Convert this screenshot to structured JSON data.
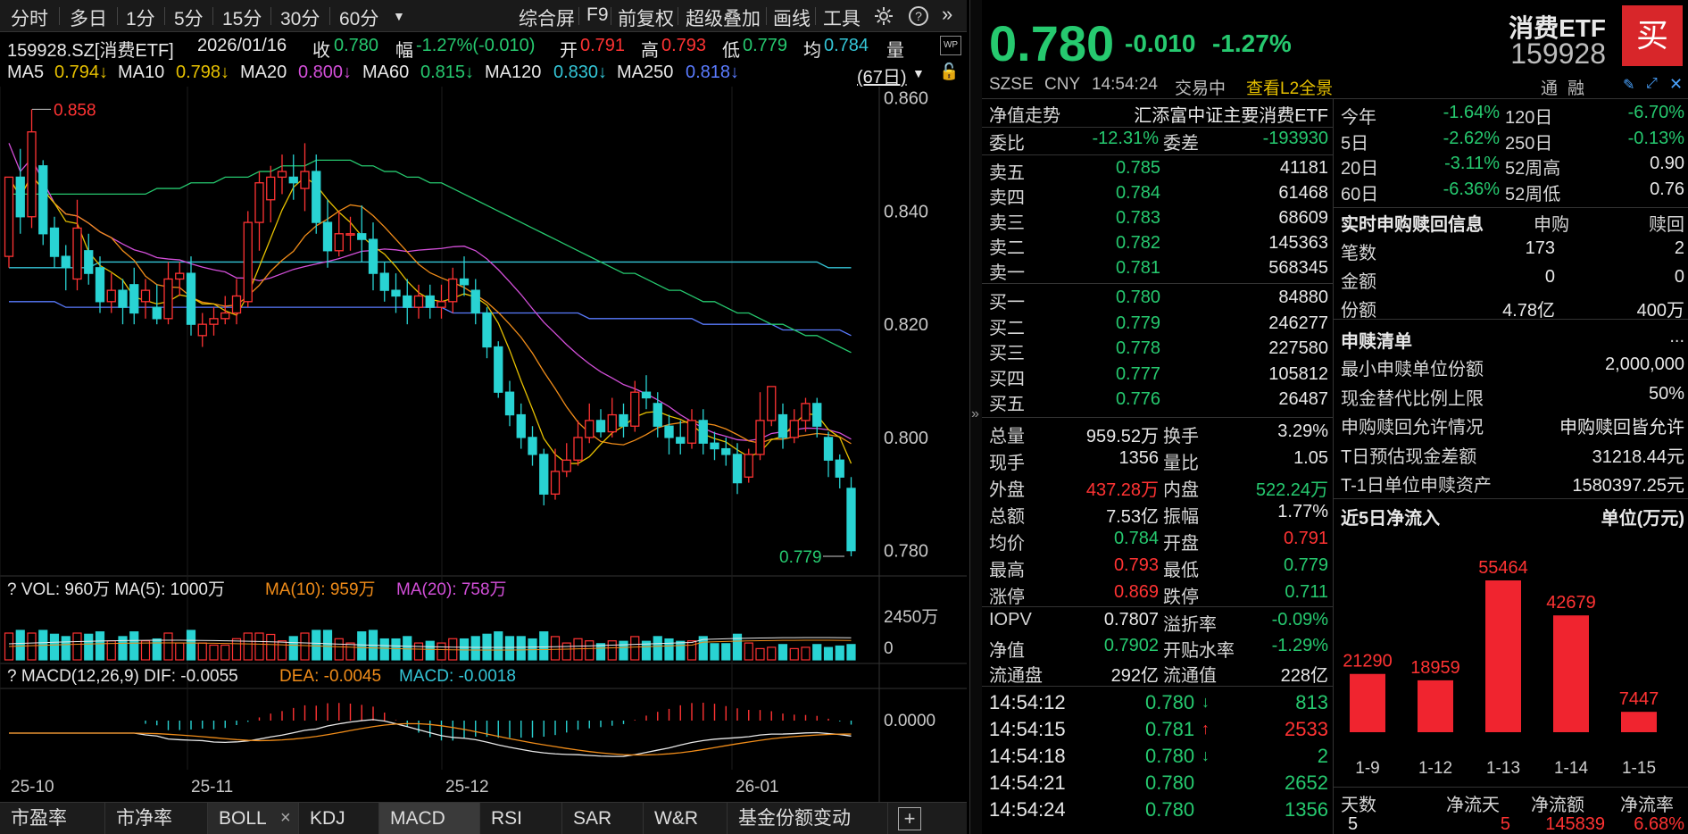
{
  "toolbar": {
    "periods": [
      "分时",
      "多日",
      "1分",
      "5分",
      "15分",
      "30分",
      "60分"
    ],
    "right_items": [
      "综合屏",
      "F9",
      "前复权",
      "超级叠加",
      "画线",
      "工具"
    ]
  },
  "info": {
    "code_name": "159928.SZ[消费ETF]",
    "date": "2026/01/16",
    "close_label": "收",
    "close": "0.780",
    "range_label": "幅",
    "range": "-1.27%(-0.010)",
    "open_label": "开",
    "open": "0.791",
    "high_label": "高",
    "high": "0.793",
    "low_label": "低",
    "low": "0.779",
    "avg_label": "均",
    "avg": "0.784",
    "vol_label": "量"
  },
  "ma": {
    "ma5": "MA5",
    "ma5v": "0.794↓",
    "ma10": "MA10",
    "ma10v": "0.798↓",
    "ma20": "MA20",
    "ma20v": "0.800↓",
    "ma60": "MA60",
    "ma60v": "0.815↓",
    "ma120": "MA120",
    "ma120v": "0.830↓",
    "ma250": "MA250",
    "ma250v": "0.818↓",
    "days": "(67日)"
  },
  "chart_data": {
    "type": "candlestick",
    "ylim": [
      0.776,
      0.862
    ],
    "yticks": [
      "0.860",
      "0.840",
      "0.820",
      "0.800",
      "0.780"
    ],
    "max_label": "0.858",
    "min_label": "0.779",
    "xticks": [
      "25-10",
      "25-11",
      "25-12",
      "26-01"
    ],
    "candles": [
      [
        0.832,
        0.846,
        0.846,
        0.83
      ],
      [
        0.846,
        0.839,
        0.851,
        0.836
      ],
      [
        0.839,
        0.854,
        0.858,
        0.837
      ],
      [
        0.848,
        0.836,
        0.849,
        0.834
      ],
      [
        0.837,
        0.832,
        0.839,
        0.83
      ],
      [
        0.832,
        0.83,
        0.834,
        0.826
      ],
      [
        0.828,
        0.837,
        0.842,
        0.826
      ],
      [
        0.833,
        0.829,
        0.836,
        0.827
      ],
      [
        0.83,
        0.824,
        0.832,
        0.822
      ],
      [
        0.824,
        0.826,
        0.829,
        0.822
      ],
      [
        0.826,
        0.823,
        0.828,
        0.82
      ],
      [
        0.827,
        0.822,
        0.83,
        0.82
      ],
      [
        0.824,
        0.826,
        0.828,
        0.821
      ],
      [
        0.823,
        0.821,
        0.827,
        0.82
      ],
      [
        0.821,
        0.828,
        0.831,
        0.82
      ],
      [
        0.828,
        0.829,
        0.831,
        0.825
      ],
      [
        0.829,
        0.82,
        0.832,
        0.818
      ],
      [
        0.818,
        0.82,
        0.822,
        0.816
      ],
      [
        0.82,
        0.821,
        0.823,
        0.818
      ],
      [
        0.821,
        0.822,
        0.825,
        0.82
      ],
      [
        0.822,
        0.825,
        0.828,
        0.82
      ],
      [
        0.824,
        0.838,
        0.84,
        0.823
      ],
      [
        0.838,
        0.845,
        0.847,
        0.833
      ],
      [
        0.842,
        0.846,
        0.848,
        0.838
      ],
      [
        0.846,
        0.847,
        0.85,
        0.843
      ],
      [
        0.846,
        0.845,
        0.85,
        0.842
      ],
      [
        0.844,
        0.847,
        0.852,
        0.84
      ],
      [
        0.847,
        0.838,
        0.85,
        0.836
      ],
      [
        0.838,
        0.833,
        0.842,
        0.83
      ],
      [
        0.833,
        0.836,
        0.84,
        0.832
      ],
      [
        0.836,
        0.836,
        0.839,
        0.833
      ],
      [
        0.836,
        0.835,
        0.841,
        0.831
      ],
      [
        0.835,
        0.829,
        0.838,
        0.826
      ],
      [
        0.829,
        0.826,
        0.831,
        0.824
      ],
      [
        0.826,
        0.825,
        0.829,
        0.822
      ],
      [
        0.825,
        0.823,
        0.828,
        0.82
      ],
      [
        0.823,
        0.825,
        0.827,
        0.821
      ],
      [
        0.825,
        0.823,
        0.827,
        0.821
      ],
      [
        0.823,
        0.824,
        0.827,
        0.821
      ],
      [
        0.824,
        0.828,
        0.83,
        0.822
      ],
      [
        0.828,
        0.827,
        0.832,
        0.825
      ],
      [
        0.826,
        0.822,
        0.828,
        0.82
      ],
      [
        0.822,
        0.816,
        0.823,
        0.814
      ],
      [
        0.816,
        0.808,
        0.817,
        0.807
      ],
      [
        0.808,
        0.804,
        0.81,
        0.802
      ],
      [
        0.804,
        0.8,
        0.806,
        0.798
      ],
      [
        0.8,
        0.797,
        0.802,
        0.795
      ],
      [
        0.797,
        0.79,
        0.798,
        0.788
      ],
      [
        0.79,
        0.794,
        0.798,
        0.789
      ],
      [
        0.794,
        0.796,
        0.799,
        0.793
      ],
      [
        0.796,
        0.8,
        0.803,
        0.795
      ],
      [
        0.8,
        0.803,
        0.806,
        0.799
      ],
      [
        0.803,
        0.801,
        0.805,
        0.8
      ],
      [
        0.801,
        0.804,
        0.807,
        0.8
      ],
      [
        0.804,
        0.802,
        0.806,
        0.8
      ],
      [
        0.802,
        0.808,
        0.81,
        0.801
      ],
      [
        0.808,
        0.807,
        0.811,
        0.805
      ],
      [
        0.806,
        0.802,
        0.808,
        0.8
      ],
      [
        0.802,
        0.8,
        0.804,
        0.797
      ],
      [
        0.8,
        0.799,
        0.803,
        0.797
      ],
      [
        0.799,
        0.803,
        0.805,
        0.798
      ],
      [
        0.803,
        0.799,
        0.805,
        0.797
      ],
      [
        0.799,
        0.798,
        0.801,
        0.796
      ],
      [
        0.798,
        0.797,
        0.8,
        0.795
      ],
      [
        0.797,
        0.792,
        0.799,
        0.79
      ],
      [
        0.793,
        0.797,
        0.798,
        0.792
      ],
      [
        0.797,
        0.803,
        0.808,
        0.796
      ],
      [
        0.803,
        0.809,
        0.809,
        0.802
      ],
      [
        0.804,
        0.8,
        0.806,
        0.798
      ],
      [
        0.8,
        0.803,
        0.805,
        0.799
      ],
      [
        0.803,
        0.806,
        0.807,
        0.801
      ],
      [
        0.806,
        0.802,
        0.807,
        0.8
      ],
      [
        0.8,
        0.796,
        0.801,
        0.793
      ],
      [
        0.796,
        0.793,
        0.797,
        0.791
      ],
      [
        0.791,
        0.78,
        0.793,
        0.779
      ]
    ],
    "ma_colors": {
      "ma5": "#e6c000",
      "ma10": "#f08c19",
      "ma20": "#d34fd9",
      "ma60": "#26c96f",
      "ma120": "#34c5d6",
      "ma250": "#5a7bff"
    },
    "ma120_line": [
      0.83,
      0.83,
      0.83,
      0.83,
      0.83,
      0.83,
      0.83,
      0.83,
      0.831,
      0.831,
      0.831,
      0.831,
      0.831,
      0.831,
      0.831,
      0.831,
      0.831,
      0.831,
      0.831,
      0.831,
      0.831,
      0.831,
      0.831,
      0.831,
      0.831,
      0.831,
      0.831,
      0.831,
      0.831,
      0.831,
      0.831,
      0.831,
      0.831,
      0.831,
      0.831,
      0.831,
      0.831,
      0.831,
      0.831,
      0.831,
      0.831,
      0.831,
      0.831,
      0.831,
      0.831,
      0.831,
      0.831,
      0.831,
      0.831,
      0.831,
      0.831,
      0.831,
      0.831,
      0.831,
      0.831,
      0.831,
      0.831,
      0.831,
      0.831,
      0.831,
      0.831,
      0.831,
      0.831,
      0.831,
      0.831,
      0.831,
      0.831,
      0.831,
      0.831,
      0.831,
      0.831,
      0.831,
      0.83,
      0.83,
      0.83
    ],
    "ma250_line": [
      0.824,
      0.824,
      0.824,
      0.824,
      0.824,
      0.823,
      0.823,
      0.823,
      0.823,
      0.823,
      0.823,
      0.823,
      0.823,
      0.823,
      0.823,
      0.823,
      0.823,
      0.823,
      0.823,
      0.823,
      0.823,
      0.823,
      0.823,
      0.823,
      0.823,
      0.823,
      0.823,
      0.823,
      0.823,
      0.823,
      0.823,
      0.823,
      0.823,
      0.823,
      0.823,
      0.823,
      0.823,
      0.823,
      0.823,
      0.822,
      0.822,
      0.822,
      0.822,
      0.822,
      0.822,
      0.822,
      0.822,
      0.822,
      0.822,
      0.822,
      0.822,
      0.821,
      0.821,
      0.821,
      0.821,
      0.821,
      0.821,
      0.821,
      0.821,
      0.821,
      0.821,
      0.82,
      0.82,
      0.82,
      0.82,
      0.82,
      0.82,
      0.82,
      0.819,
      0.819,
      0.819,
      0.819,
      0.819,
      0.819,
      0.818
    ],
    "ma60_line": [
      0.843,
      0.843,
      0.843,
      0.843,
      0.843,
      0.843,
      0.843,
      0.843,
      0.843,
      0.843,
      0.843,
      0.843,
      0.843,
      0.844,
      0.844,
      0.844,
      0.845,
      0.845,
      0.845,
      0.846,
      0.846,
      0.846,
      0.847,
      0.847,
      0.848,
      0.848,
      0.848,
      0.849,
      0.849,
      0.849,
      0.849,
      0.848,
      0.848,
      0.847,
      0.847,
      0.846,
      0.846,
      0.845,
      0.845,
      0.844,
      0.843,
      0.842,
      0.841,
      0.84,
      0.839,
      0.838,
      0.837,
      0.836,
      0.835,
      0.834,
      0.833,
      0.832,
      0.831,
      0.83,
      0.829,
      0.829,
      0.828,
      0.827,
      0.826,
      0.826,
      0.825,
      0.824,
      0.824,
      0.823,
      0.822,
      0.822,
      0.821,
      0.82,
      0.82,
      0.819,
      0.818,
      0.818,
      0.817,
      0.816,
      0.815
    ],
    "volume": {
      "label": "VOL: 960万 MA(5): 1000万",
      "ma10": "MA(10): 959万",
      "ma20": "MA(20): 758万",
      "ytick_top": "2450万",
      "ytick_zero": "0",
      "max": 2450
    },
    "macd": {
      "label": "MACD(12,26,9) DIF: -0.0055",
      "dea": "DEA: -0.0045",
      "macd": "MACD: -0.0018",
      "ytick": "0.0000"
    }
  },
  "bottom_tabs": [
    "市盈率",
    "市净率",
    "BOLL",
    "KDJ",
    "MACD",
    "RSI",
    "SAR",
    "W&R",
    "基金份额变动"
  ],
  "quote": {
    "price": "0.780",
    "change": "-0.010",
    "change_pct": "-1.27%",
    "name": "消费ETF",
    "code": "159928",
    "exchange": "SZSE",
    "currency": "CNY",
    "time": "14:54:24",
    "status": "交易中",
    "l2": "查看L2全景",
    "tong": "通",
    "rong": "融",
    "buy": "买",
    "nav_trend": "净值走势",
    "fund_name": "汇添富中证主要消费ETF",
    "weibi_label": "委比",
    "weibi": "-12.31%",
    "weicha_label": "委差",
    "weicha": "-193930",
    "asks": [
      {
        "label": "卖五",
        "price": "0.785",
        "vol": "41181"
      },
      {
        "label": "卖四",
        "price": "0.784",
        "vol": "61468"
      },
      {
        "label": "卖三",
        "price": "0.783",
        "vol": "68609"
      },
      {
        "label": "卖二",
        "price": "0.782",
        "vol": "145363"
      },
      {
        "label": "卖一",
        "price": "0.781",
        "vol": "568345"
      }
    ],
    "bids": [
      {
        "label": "买一",
        "price": "0.780",
        "vol": "84880"
      },
      {
        "label": "买二",
        "price": "0.779",
        "vol": "246277"
      },
      {
        "label": "买三",
        "price": "0.778",
        "vol": "227580"
      },
      {
        "label": "买四",
        "price": "0.777",
        "vol": "105812"
      },
      {
        "label": "买五",
        "price": "0.776",
        "vol": "26487"
      }
    ],
    "stats": [
      [
        {
          "l": "总量",
          "v": "959.52万",
          "c": "white"
        },
        {
          "l": "换手",
          "v": "3.29%",
          "c": "white"
        }
      ],
      [
        {
          "l": "现手",
          "v": "1356",
          "c": "white"
        },
        {
          "l": "量比",
          "v": "1.05",
          "c": "white"
        }
      ],
      [
        {
          "l": "外盘",
          "v": "437.28万",
          "c": "red"
        },
        {
          "l": "内盘",
          "v": "522.24万",
          "c": "green"
        }
      ],
      [
        {
          "l": "总额",
          "v": "7.53亿",
          "c": "white"
        },
        {
          "l": "振幅",
          "v": "1.77%",
          "c": "white"
        }
      ],
      [
        {
          "l": "均价",
          "v": "0.784",
          "c": "green"
        },
        {
          "l": "开盘",
          "v": "0.791",
          "c": "red"
        }
      ],
      [
        {
          "l": "最高",
          "v": "0.793",
          "c": "red"
        },
        {
          "l": "最低",
          "v": "0.779",
          "c": "green"
        }
      ],
      [
        {
          "l": "涨停",
          "v": "0.869",
          "c": "red"
        },
        {
          "l": "跌停",
          "v": "0.711",
          "c": "green"
        }
      ]
    ],
    "stats2": [
      [
        {
          "l": "IOPV",
          "v": "0.7807",
          "c": "white"
        },
        {
          "l": "溢折率",
          "v": "-0.09%",
          "c": "green"
        }
      ],
      [
        {
          "l": "净值",
          "v": "0.7902",
          "c": "green"
        },
        {
          "l": "开贴水率",
          "v": "-1.29%",
          "c": "green"
        }
      ],
      [
        {
          "l": "流通盘",
          "v": "292亿",
          "c": "white"
        },
        {
          "l": "流通值",
          "v": "228亿",
          "c": "white"
        }
      ]
    ],
    "ticks": [
      {
        "t": "14:54:12",
        "p": "0.780",
        "dir": "down",
        "v": "813",
        "vc": "green"
      },
      {
        "t": "14:54:15",
        "p": "0.781",
        "dir": "up",
        "v": "2533",
        "vc": "red"
      },
      {
        "t": "14:54:18",
        "p": "0.780",
        "dir": "down",
        "v": "2",
        "vc": "green"
      },
      {
        "t": "14:54:21",
        "p": "0.780",
        "dir": "",
        "v": "2652",
        "vc": "green"
      },
      {
        "t": "14:54:24",
        "p": "0.780",
        "dir": "",
        "v": "1356",
        "vc": "green"
      }
    ],
    "perf": [
      [
        {
          "l": "今年",
          "v": "-1.64%"
        },
        {
          "l": "120日",
          "v": "-6.70%"
        }
      ],
      [
        {
          "l": "5日",
          "v": "-2.62%"
        },
        {
          "l": "250日",
          "v": "-0.13%"
        }
      ],
      [
        {
          "l": "20日",
          "v": "-3.11%"
        },
        {
          "l": "52周高",
          "v": "0.90",
          "c": "white"
        }
      ],
      [
        {
          "l": "60日",
          "v": "-6.36%"
        },
        {
          "l": "52周低",
          "v": "0.76",
          "c": "white"
        }
      ]
    ],
    "sub_title": "实时申购赎回信息",
    "sub_h1": "申购",
    "sub_h2": "赎回",
    "sub_rows": [
      {
        "l": "笔数",
        "a": "173",
        "b": "2"
      },
      {
        "l": "金额",
        "a": "0",
        "b": "0"
      },
      {
        "l": "份额",
        "a": "4.78亿",
        "b": "400万"
      }
    ],
    "list_title": "申赎清单",
    "list_more": "...",
    "list_rows": [
      {
        "l": "最小申赎单位份额",
        "v": "2,000,000"
      },
      {
        "l": "现金替代比例上限",
        "v": "50%"
      },
      {
        "l": "申购赎回允许情况",
        "v": "申购赎回皆允许"
      },
      {
        "l": "T日预估现金差额",
        "v": "31218.44元"
      },
      {
        "l": "T-1日单位申赎资产",
        "v": "1580397.25元"
      }
    ],
    "flow_title": "近5日净流入",
    "flow_unit": "单位(万元)",
    "flow_chart": {
      "type": "bar",
      "categories": [
        "1-9",
        "1-12",
        "1-13",
        "1-14",
        "1-15"
      ],
      "values": [
        21290,
        18959,
        55464,
        42679,
        7447
      ]
    },
    "foot": {
      "h1": "天数",
      "h2": "净流天",
      "h3": "净流额",
      "h4": "净流率",
      "v1": "5",
      "v2": "5",
      "v3": "145839",
      "v4": "6.68%"
    }
  }
}
